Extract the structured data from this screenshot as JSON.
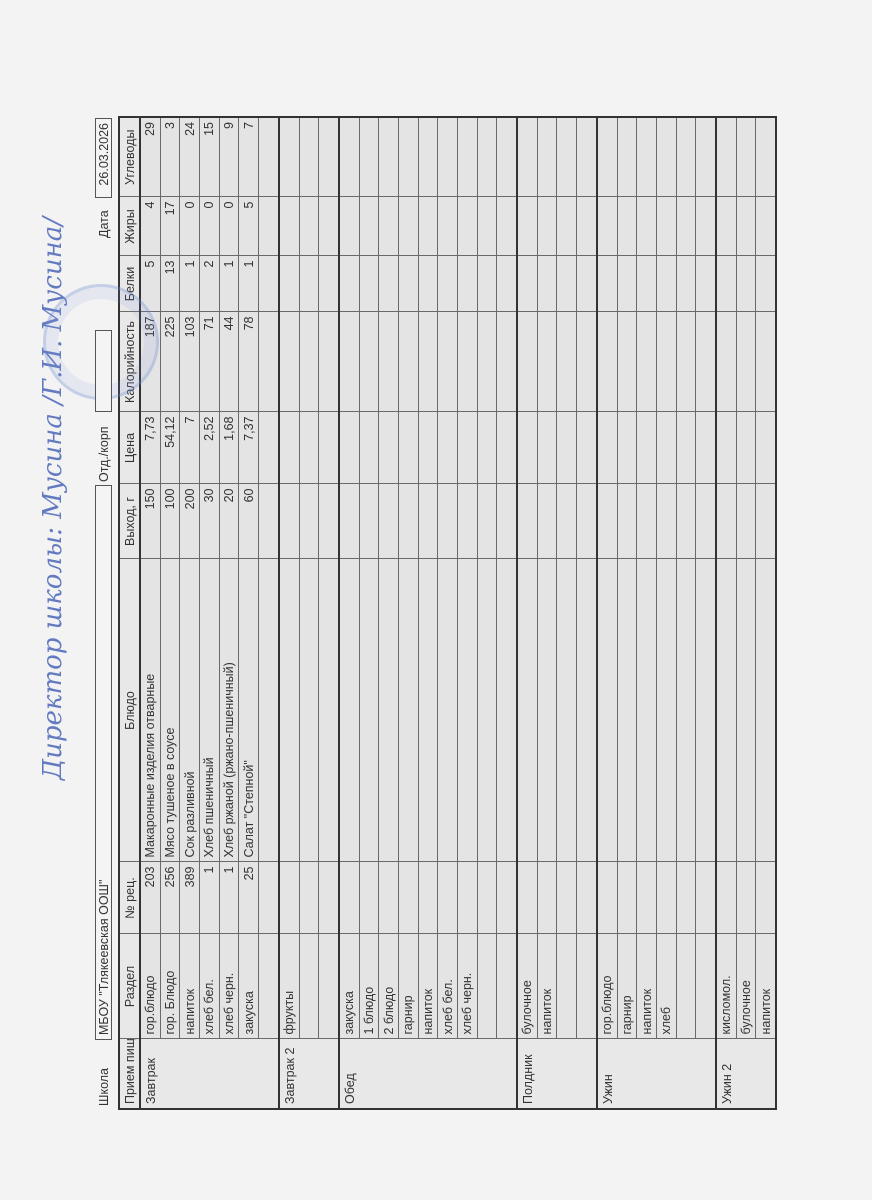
{
  "header": {
    "school_label": "Школа",
    "school_name": "МБОУ \"Тлякеевская ООШ\"",
    "dept_label": "Отд./корп",
    "dept_value": "",
    "date_label": "Дата",
    "date_value": "26.03.2026"
  },
  "columns": [
    "Прием пищи",
    "Раздел",
    "№ рец.",
    "Блюдо",
    "Выход, г",
    "Цена",
    "Калорийность",
    "Белки",
    "Жиры",
    "Углеводы"
  ],
  "meals": [
    {
      "name": "Завтрак",
      "rows": [
        [
          "гор.блюдо",
          "203",
          "Макаронные изделия отварные",
          "150",
          "7,73",
          "187",
          "5",
          "4",
          "29"
        ],
        [
          "гор. Блюдо",
          "256",
          "Мясо тушеное в соусе",
          "100",
          "54,12",
          "225",
          "13",
          "17",
          "3"
        ],
        [
          "напиток",
          "389",
          "Сок разливной",
          "200",
          "7",
          "103",
          "1",
          "0",
          "24"
        ],
        [
          "хлеб бел.",
          "1",
          "Хлеб пшеничный",
          "30",
          "2,52",
          "71",
          "2",
          "0",
          "15"
        ],
        [
          "хлеб черн.",
          "1",
          "Хлеб ржаной (ржано-пшеничный)",
          "20",
          "1,68",
          "44",
          "1",
          "0",
          "9"
        ],
        [
          "закуска",
          "25",
          "Салат \"Степной\"",
          "60",
          "7,37",
          "78",
          "1",
          "5",
          "7"
        ],
        [
          "",
          "",
          "",
          "",
          "",
          "",
          "",
          "",
          ""
        ]
      ]
    },
    {
      "name": "Завтрак 2",
      "rows": [
        [
          "фрукты",
          "",
          "",
          "",
          "",
          "",
          "",
          "",
          ""
        ],
        [
          "",
          "",
          "",
          "",
          "",
          "",
          "",
          "",
          ""
        ],
        [
          "",
          "",
          "",
          "",
          "",
          "",
          "",
          "",
          ""
        ]
      ]
    },
    {
      "name": "Обед",
      "rows": [
        [
          "закуска",
          "",
          "",
          "",
          "",
          "",
          "",
          "",
          ""
        ],
        [
          "1 блюдо",
          "",
          "",
          "",
          "",
          "",
          "",
          "",
          ""
        ],
        [
          "2 блюдо",
          "",
          "",
          "",
          "",
          "",
          "",
          "",
          ""
        ],
        [
          "гарнир",
          "",
          "",
          "",
          "",
          "",
          "",
          "",
          ""
        ],
        [
          "напиток",
          "",
          "",
          "",
          "",
          "",
          "",
          "",
          ""
        ],
        [
          "хлеб бел.",
          "",
          "",
          "",
          "",
          "",
          "",
          "",
          ""
        ],
        [
          "хлеб черн.",
          "",
          "",
          "",
          "",
          "",
          "",
          "",
          ""
        ],
        [
          "",
          "",
          "",
          "",
          "",
          "",
          "",
          "",
          ""
        ],
        [
          "",
          "",
          "",
          "",
          "",
          "",
          "",
          "",
          ""
        ]
      ]
    },
    {
      "name": "Полдник",
      "rows": [
        [
          "булочное",
          "",
          "",
          "",
          "",
          "",
          "",
          "",
          ""
        ],
        [
          "напиток",
          "",
          "",
          "",
          "",
          "",
          "",
          "",
          ""
        ],
        [
          "",
          "",
          "",
          "",
          "",
          "",
          "",
          "",
          ""
        ],
        [
          "",
          "",
          "",
          "",
          "",
          "",
          "",
          "",
          ""
        ]
      ]
    },
    {
      "name": "Ужин",
      "rows": [
        [
          "гор.блюдо",
          "",
          "",
          "",
          "",
          "",
          "",
          "",
          ""
        ],
        [
          "гарнир",
          "",
          "",
          "",
          "",
          "",
          "",
          "",
          ""
        ],
        [
          "напиток",
          "",
          "",
          "",
          "",
          "",
          "",
          "",
          ""
        ],
        [
          "хлеб",
          "",
          "",
          "",
          "",
          "",
          "",
          "",
          ""
        ],
        [
          "",
          "",
          "",
          "",
          "",
          "",
          "",
          "",
          ""
        ],
        [
          "",
          "",
          "",
          "",
          "",
          "",
          "",
          "",
          ""
        ]
      ]
    },
    {
      "name": "Ужин 2",
      "rows": [
        [
          "кисломол.",
          "",
          "",
          "",
          "",
          "",
          "",
          "",
          ""
        ],
        [
          "булочное",
          "",
          "",
          "",
          "",
          "",
          "",
          "",
          ""
        ],
        [
          "напиток",
          "",
          "",
          "",
          "",
          "",
          "",
          "",
          ""
        ]
      ]
    }
  ],
  "signature": {
    "text": "Директор школы: Мусина /Г.И. Мусина/",
    "ink_color": "#4a66b8"
  },
  "colors": {
    "grid": "#6a6a6a",
    "cell_bg": "#e4e4e4",
    "stamp": "#6e8cd2"
  }
}
